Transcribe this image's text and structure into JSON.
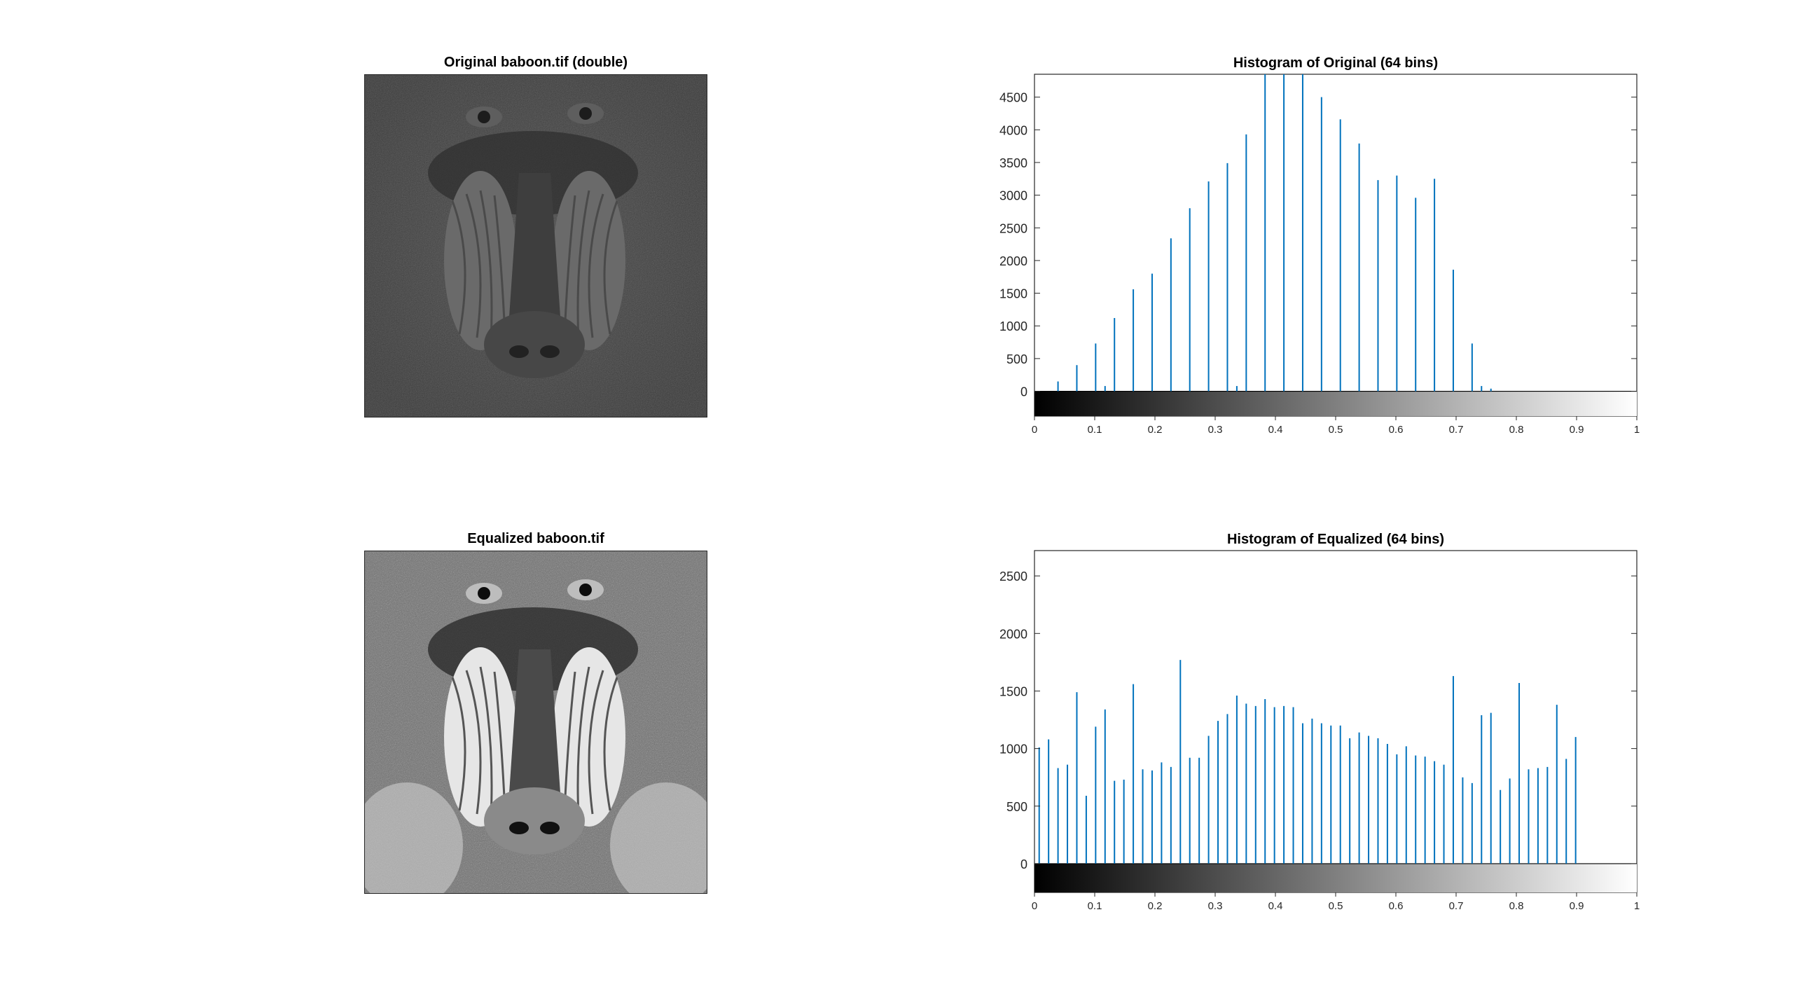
{
  "images": [
    {
      "title": "Original baboon.tif (double)",
      "tone": "dark"
    },
    {
      "title": "Equalized baboon.tif",
      "tone": "bright"
    }
  ],
  "chart_data": [
    {
      "type": "bar",
      "title": "Histogram of Original (64 bins)",
      "xlabel": "",
      "ylabel": "",
      "xlim": [
        0,
        1
      ],
      "ylim": [
        -380,
        4850
      ],
      "yticks": [
        0,
        500,
        1000,
        1500,
        2000,
        2500,
        3000,
        3500,
        4000,
        4500
      ],
      "xticks": [
        0,
        0.1,
        0.2,
        0.3,
        0.4,
        0.5,
        0.6,
        0.7,
        0.8,
        0.9,
        1
      ],
      "colorbar": "grayscale",
      "bar_color": "#0072BD",
      "bins": 64,
      "values": [
        0,
        0,
        150,
        0,
        400,
        0,
        730,
        80,
        1120,
        0,
        1560,
        0,
        1800,
        0,
        2340,
        0,
        2800,
        0,
        3210,
        0,
        3490,
        80,
        3930,
        0,
        4850,
        0,
        4850,
        0,
        4850,
        0,
        4500,
        0,
        4160,
        0,
        3790,
        0,
        3230,
        0,
        3300,
        0,
        2960,
        0,
        3250,
        0,
        1860,
        0,
        730,
        80,
        40,
        0,
        0,
        0,
        0,
        0,
        0,
        0,
        0,
        0,
        0,
        0,
        0,
        0,
        0,
        0
      ]
    },
    {
      "type": "bar",
      "title": "Histogram of Equalized (64 bins)",
      "xlabel": "",
      "ylabel": "",
      "xlim": [
        0,
        1
      ],
      "ylim": [
        -250,
        2720
      ],
      "yticks": [
        0,
        500,
        1000,
        1500,
        2000,
        2500
      ],
      "xticks": [
        0,
        0.1,
        0.2,
        0.3,
        0.4,
        0.5,
        0.6,
        0.7,
        0.8,
        0.9,
        1
      ],
      "colorbar": "grayscale",
      "bar_color": "#0072BD",
      "bins": 64,
      "values": [
        1010,
        1080,
        830,
        860,
        1490,
        590,
        1190,
        1340,
        720,
        730,
        1560,
        820,
        810,
        880,
        840,
        1770,
        920,
        920,
        1110,
        1240,
        1300,
        1460,
        1390,
        1370,
        1430,
        1360,
        1370,
        1360,
        1220,
        1260,
        1220,
        1200,
        1200,
        1090,
        1140,
        1110,
        1090,
        1040,
        950,
        1020,
        940,
        930,
        890,
        860,
        1630,
        750,
        700,
        1290,
        1310,
        640,
        740,
        1570,
        820,
        830,
        840,
        1380,
        910,
        1100,
        0,
        0,
        0,
        0,
        0,
        0
      ]
    }
  ]
}
